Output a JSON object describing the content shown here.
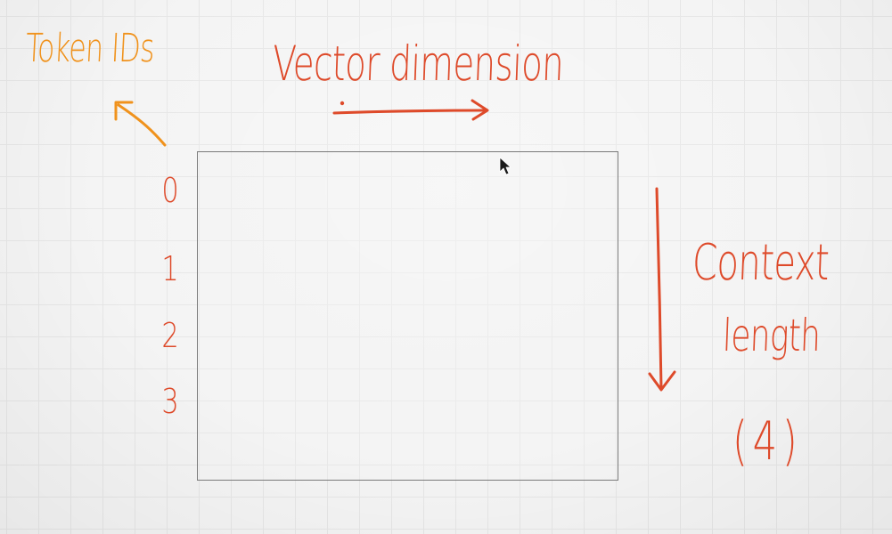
{
  "labels": {
    "token_ids": "Token IDs",
    "vector_dimension": "Vector dimension",
    "context_line1": "Context",
    "context_line2": "length",
    "context_line3": "(4)"
  },
  "rows": [
    "0",
    "1",
    "2",
    "3"
  ],
  "colors": {
    "orange_ink": "#f0921c",
    "red_ink": "#de4a2a",
    "grid_line": "#e6e6e6",
    "background": "#f4f4f4",
    "box_border": "#7a7a7a"
  },
  "icons": {
    "cursor": "mouse-pointer-icon"
  }
}
